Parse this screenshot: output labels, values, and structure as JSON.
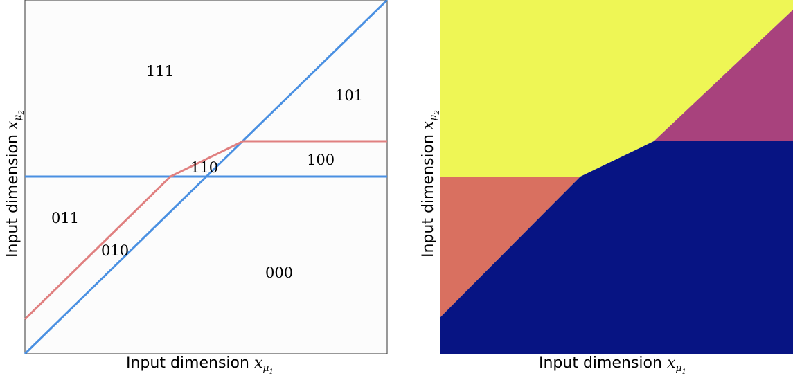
{
  "left_panel": {
    "x_axis_label": "Input dimension",
    "y_axis_label": "Input dimension",
    "x_symbol": "x",
    "x_sub": "μ",
    "x_subsub": "1",
    "y_symbol": "x",
    "y_sub": "μ",
    "y_subsub": "2",
    "region_labels": [
      "111",
      "101",
      "110",
      "100",
      "011",
      "010",
      "000"
    ],
    "colors": {
      "diagonal_and_horizontal": "#4a90e2",
      "bent_line": "#e08080",
      "background": "#fcfcfc"
    }
  },
  "right_panel": {
    "x_axis_label": "Input dimension",
    "y_axis_label": "Input dimension",
    "x_symbol": "x",
    "x_sub": "μ",
    "x_subsub": "1",
    "y_symbol": "x",
    "y_sub": "μ",
    "y_subsub": "2",
    "colors": {
      "yellow": "#eef655",
      "magenta": "#a8427d",
      "salmon": "#d97060",
      "navy": "#071483"
    }
  }
}
